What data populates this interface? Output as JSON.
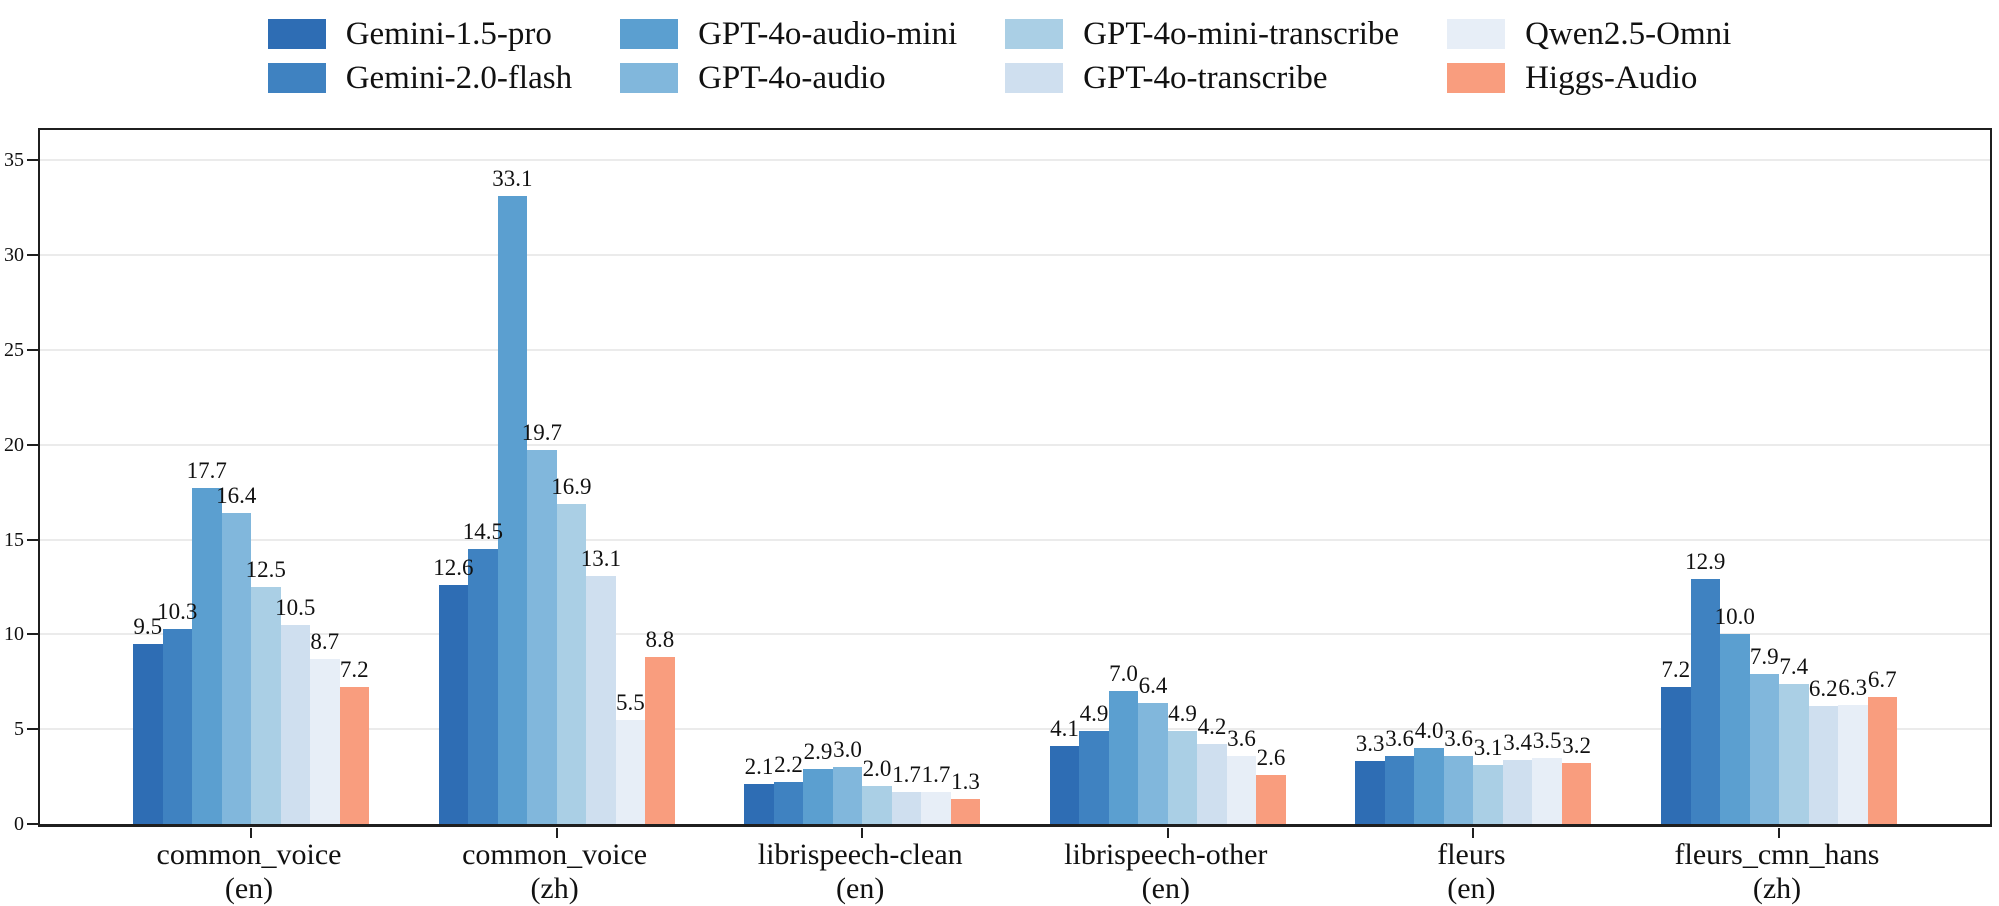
{
  "chart_data": {
    "type": "bar",
    "title": "",
    "xlabel": "",
    "ylabel": "",
    "categories": [
      {
        "label": "common_voice",
        "sub": "(en)"
      },
      {
        "label": "common_voice",
        "sub": "(zh)"
      },
      {
        "label": "librispeech-clean",
        "sub": "(en)"
      },
      {
        "label": "librispeech-other",
        "sub": "(en)"
      },
      {
        "label": "fleurs",
        "sub": "(en)"
      },
      {
        "label": "fleurs_cmn_hans",
        "sub": "(zh)"
      }
    ],
    "series": [
      {
        "name": "Gemini-1.5-pro",
        "color": "#2e6db4",
        "values": [
          9.5,
          12.6,
          2.1,
          4.1,
          3.3,
          7.2
        ]
      },
      {
        "name": "Gemini-2.0-flash",
        "color": "#3f82c1",
        "values": [
          10.3,
          14.5,
          2.2,
          4.9,
          3.6,
          12.9
        ]
      },
      {
        "name": "GPT-4o-audio-mini",
        "color": "#5b9fd0",
        "values": [
          17.7,
          33.1,
          2.9,
          7.0,
          4.0,
          10.0
        ]
      },
      {
        "name": "GPT-4o-audio",
        "color": "#81b7dc",
        "values": [
          16.4,
          19.7,
          3.0,
          6.4,
          3.6,
          7.9
        ]
      },
      {
        "name": "GPT-4o-mini-transcribe",
        "color": "#aacfe5",
        "values": [
          12.5,
          16.9,
          2.0,
          4.9,
          3.1,
          7.4
        ]
      },
      {
        "name": "GPT-4o-transcribe",
        "color": "#cfdfef",
        "values": [
          10.5,
          13.1,
          1.7,
          4.2,
          3.4,
          6.2
        ]
      },
      {
        "name": "Qwen2.5-Omni",
        "color": "#e7eef7",
        "values": [
          8.7,
          5.5,
          1.7,
          3.6,
          3.5,
          6.3
        ]
      },
      {
        "name": "Higgs-Audio",
        "color": "#f99d7e",
        "values": [
          7.2,
          8.8,
          1.3,
          2.6,
          3.2,
          6.7
        ]
      }
    ],
    "yticks": [
      0,
      5,
      10,
      15,
      20,
      25,
      30,
      35
    ],
    "ylim": [
      0,
      36.6
    ],
    "grid": true,
    "legend_position": "top",
    "legend_columns": 4,
    "value_label_decimals": 1,
    "grid_color": "#ebebeb",
    "axis_color": "#1f1f1f"
  }
}
